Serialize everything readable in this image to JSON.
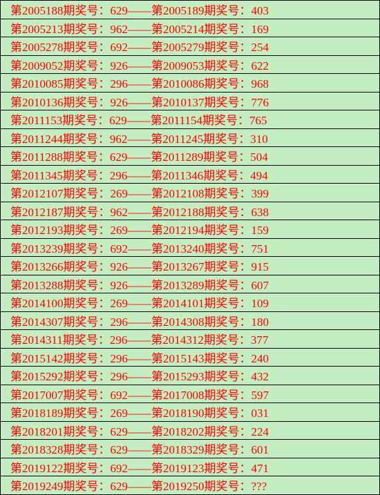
{
  "background_color": "#c5edc2",
  "text_color": "#ff0000",
  "border_color": "#000000",
  "font_size": 17,
  "rows": [
    {
      "p1": "2005188",
      "n1": "629",
      "p2": "2005189",
      "n2": "403"
    },
    {
      "p1": "2005213",
      "n1": "962",
      "p2": "2005214",
      "n2": "169"
    },
    {
      "p1": "2005278",
      "n1": "692",
      "p2": "2005279",
      "n2": "254"
    },
    {
      "p1": "2009052",
      "n1": "926",
      "p2": "2009053",
      "n2": "622"
    },
    {
      "p1": "2010085",
      "n1": "296",
      "p2": "2010086",
      "n2": "968"
    },
    {
      "p1": "2010136",
      "n1": "926",
      "p2": "2010137",
      "n2": "776"
    },
    {
      "p1": "2011153",
      "n1": "629",
      "p2": "2011154",
      "n2": "765"
    },
    {
      "p1": "2011244",
      "n1": "962",
      "p2": "2011245",
      "n2": "310"
    },
    {
      "p1": "2011288",
      "n1": "629",
      "p2": "2011289",
      "n2": "504"
    },
    {
      "p1": "2011345",
      "n1": "296",
      "p2": "2011346",
      "n2": "494"
    },
    {
      "p1": "2012107",
      "n1": "269",
      "p2": "2012108",
      "n2": "399"
    },
    {
      "p1": "2012187",
      "n1": "962",
      "p2": "2012188",
      "n2": "638"
    },
    {
      "p1": "2012193",
      "n1": "269",
      "p2": "2012194",
      "n2": "159"
    },
    {
      "p1": "2013239",
      "n1": "692",
      "p2": "2013240",
      "n2": "751"
    },
    {
      "p1": "2013266",
      "n1": "926",
      "p2": "2013267",
      "n2": "915"
    },
    {
      "p1": "2013288",
      "n1": "926",
      "p2": "2013289",
      "n2": "607"
    },
    {
      "p1": "2014100",
      "n1": "269",
      "p2": "2014101",
      "n2": "109"
    },
    {
      "p1": "2014307",
      "n1": "296",
      "p2": "2014308",
      "n2": "180"
    },
    {
      "p1": "2014311",
      "n1": "296",
      "p2": "2014312",
      "n2": "377"
    },
    {
      "p1": "2015142",
      "n1": "296",
      "p2": "2015143",
      "n2": "240"
    },
    {
      "p1": "2015292",
      "n1": "296",
      "p2": "2015293",
      "n2": "432"
    },
    {
      "p1": "2017007",
      "n1": "692",
      "p2": "2017008",
      "n2": "597"
    },
    {
      "p1": "2018189",
      "n1": "269",
      "p2": "2018190",
      "n2": "031"
    },
    {
      "p1": "2018201",
      "n1": "629",
      "p2": "2018202",
      "n2": "224"
    },
    {
      "p1": "2018328",
      "n1": "629",
      "p2": "2018329",
      "n2": "601"
    },
    {
      "p1": "2019122",
      "n1": "692",
      "p2": "2019123",
      "n2": "471"
    },
    {
      "p1": "2019249",
      "n1": "629",
      "p2": "2019250",
      "n2": "???"
    }
  ],
  "labels": {
    "prefix": "第",
    "mid": "期奖号：",
    "separator": "——"
  }
}
